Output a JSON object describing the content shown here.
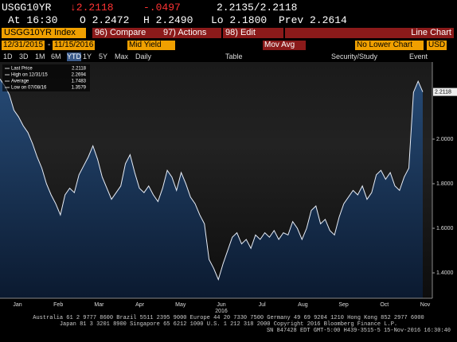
{
  "header": {
    "ticker": "USGG10YR",
    "last": "↓2.2118",
    "change": "-.0497",
    "bid_ask": "2.2135/2.2118",
    "time": "At 16:30",
    "open": "O 2.2472",
    "high": "H 2.2490",
    "low": "Lo 2.1800",
    "prev": "Prev 2.2614"
  },
  "toolbar": {
    "security": "USGG10YR Index",
    "compare": "96) Compare",
    "actions": "97) Actions",
    "edit": "98) Edit",
    "chart_type": "Line Chart",
    "start": "12/31/2015",
    "dash": "-",
    "end": "11/15/2016",
    "field": "Mid Yield",
    "mov_avg": "Mov Avg",
    "lower": "No Lower Chart",
    "currency": "USD",
    "periods": [
      "1D",
      "3D",
      "1M",
      "6M",
      "YTD",
      "1Y",
      "5Y",
      "Max",
      "Daily"
    ],
    "table": "Table",
    "study": "Security/Study",
    "event": "Event"
  },
  "chart": {
    "type": "area",
    "legend": [
      {
        "name": "Last Price",
        "value": "2.2118"
      },
      {
        "name": "High on 12/31/15",
        "value": "2.2694"
      },
      {
        "name": "Average",
        "value": "1.7483"
      },
      {
        "name": "Low on 07/08/16",
        "value": "1.3579"
      }
    ],
    "values": [
      2.27,
      2.24,
      2.2,
      2.13,
      2.1,
      2.06,
      2.03,
      1.98,
      1.92,
      1.87,
      1.8,
      1.75,
      1.71,
      1.66,
      1.75,
      1.78,
      1.76,
      1.84,
      1.88,
      1.92,
      1.97,
      1.91,
      1.83,
      1.78,
      1.73,
      1.76,
      1.79,
      1.89,
      1.93,
      1.85,
      1.78,
      1.76,
      1.79,
      1.75,
      1.72,
      1.78,
      1.86,
      1.83,
      1.77,
      1.85,
      1.8,
      1.74,
      1.71,
      1.66,
      1.62,
      1.46,
      1.42,
      1.37,
      1.44,
      1.5,
      1.56,
      1.58,
      1.53,
      1.55,
      1.51,
      1.57,
      1.55,
      1.58,
      1.56,
      1.59,
      1.55,
      1.58,
      1.57,
      1.63,
      1.6,
      1.55,
      1.6,
      1.68,
      1.7,
      1.62,
      1.64,
      1.59,
      1.57,
      1.65,
      1.71,
      1.74,
      1.77,
      1.75,
      1.79,
      1.73,
      1.76,
      1.84,
      1.86,
      1.82,
      1.85,
      1.79,
      1.77,
      1.83,
      1.87,
      2.21,
      2.26,
      2.2118
    ],
    "last_label": "2.2118",
    "ylim": [
      1.286,
      2.346
    ],
    "yticks": [
      {
        "value": 1.4,
        "label": "1.4000"
      },
      {
        "value": 1.6,
        "label": "1.6000"
      },
      {
        "value": 1.8,
        "label": "1.8000"
      },
      {
        "value": 2.0,
        "label": "2.0000"
      }
    ],
    "months": [
      "Jan",
      "Feb",
      "Mar",
      "Apr",
      "May",
      "Jun",
      "Jul",
      "Aug",
      "Sep",
      "Oct",
      "Nov"
    ],
    "year": "2016",
    "line_color": "#e8eef8",
    "fill_color": "#1f3c60"
  },
  "footer": [
    "Australia 61 2 9777 8600 Brazil 5511 2395 9000 Europe 44 20 7330 7500 Germany 49 69 9204 1210 Hong Kong 852 2977 6000",
    "Japan 81 3 3201 8900     Singapore 65 6212 1000     U.S. 1 212 318 2000     Copyright 2016 Bloomberg Finance L.P.",
    "SN 847428 EDT GMT-5:00 H439-3515-5 15-Nov-2016 16:30:40"
  ]
}
